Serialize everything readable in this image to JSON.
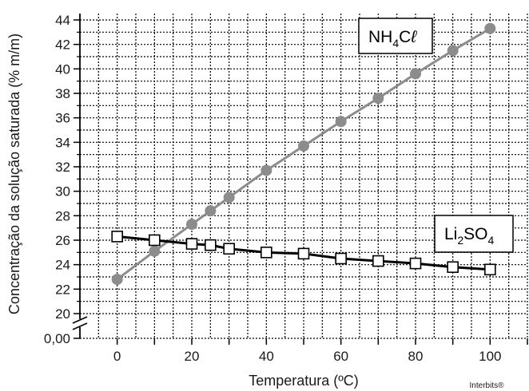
{
  "chart_data": {
    "type": "line",
    "xlabel": "Temperatura (ºC)",
    "ylabel": "Concentração da solução saturada (% m/m)",
    "xlim": [
      -10,
      110
    ],
    "ylim": [
      20,
      44
    ],
    "x_ticks": [
      0,
      20,
      40,
      60,
      80,
      100
    ],
    "y_ticks": [
      20,
      22,
      24,
      26,
      28,
      30,
      32,
      34,
      36,
      38,
      40,
      42,
      44
    ],
    "y_extra_tick": "0,00",
    "y_axis_break": true,
    "grid": true,
    "credit": "Interbits®",
    "series": [
      {
        "label_main": "NH",
        "label_sub1": "4",
        "label_rest": "C",
        "label_tail": "ℓ",
        "color": "#8c8c8c",
        "marker": "circle",
        "x": [
          0,
          10,
          20,
          25,
          30,
          40,
          50,
          60,
          70,
          80,
          90,
          100
        ],
        "y": [
          22.8,
          25.1,
          27.3,
          28.4,
          29.5,
          31.7,
          33.7,
          35.7,
          37.6,
          39.6,
          41.5,
          43.3
        ]
      },
      {
        "label_main": "Li",
        "label_sub1": "2",
        "label_rest": "SO",
        "label_sub2": "4",
        "color": "#000000",
        "marker": "square",
        "x": [
          0,
          10,
          20,
          25,
          30,
          40,
          50,
          60,
          70,
          80,
          90,
          100
        ],
        "y": [
          26.3,
          26.0,
          25.7,
          25.6,
          25.3,
          25.0,
          24.9,
          24.5,
          24.3,
          24.1,
          23.8,
          23.6
        ]
      }
    ]
  }
}
